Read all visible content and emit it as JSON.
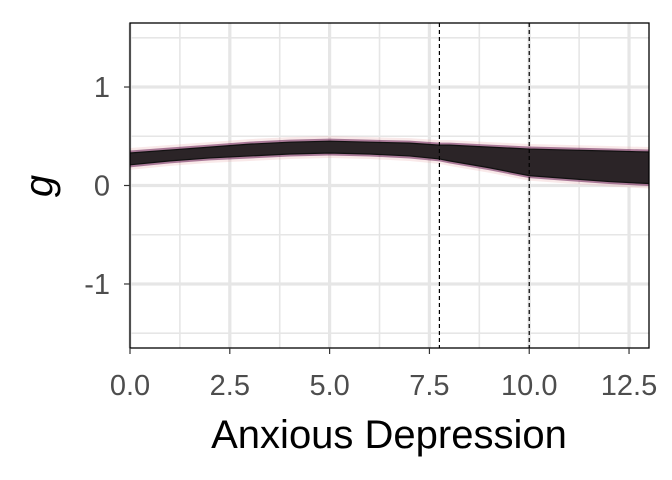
{
  "chart_data": {
    "type": "area",
    "xlabel": "Anxious Depression",
    "ylabel": "g",
    "xlim": [
      0,
      13
    ],
    "ylim": [
      -1.65,
      1.65
    ],
    "x_ticks": [
      0.0,
      2.5,
      5.0,
      7.5,
      10.0,
      12.5
    ],
    "x_tick_labels": [
      "0.0",
      "2.5",
      "5.0",
      "7.5",
      "10.0",
      "12.5"
    ],
    "y_ticks": [
      -1,
      0,
      1
    ],
    "y_tick_labels": [
      "-1",
      "0",
      "1"
    ],
    "grid": true,
    "vlines": [
      7.75,
      10.0
    ],
    "band": {
      "x": [
        0,
        1,
        2,
        3,
        4,
        5,
        6,
        7,
        7.75,
        8,
        9,
        10,
        11,
        12,
        13
      ],
      "upper": [
        0.33,
        0.36,
        0.39,
        0.42,
        0.44,
        0.45,
        0.44,
        0.43,
        0.41,
        0.41,
        0.39,
        0.37,
        0.36,
        0.35,
        0.34
      ],
      "lower": [
        0.21,
        0.25,
        0.28,
        0.3,
        0.32,
        0.33,
        0.32,
        0.3,
        0.27,
        0.25,
        0.18,
        0.1,
        0.07,
        0.04,
        0.02
      ]
    },
    "colors": {
      "band": "#2b2427",
      "edge": "#6a1f55",
      "glow": "#e8a8a8",
      "grid": "#e6e6e6",
      "vline": "#000000"
    }
  }
}
